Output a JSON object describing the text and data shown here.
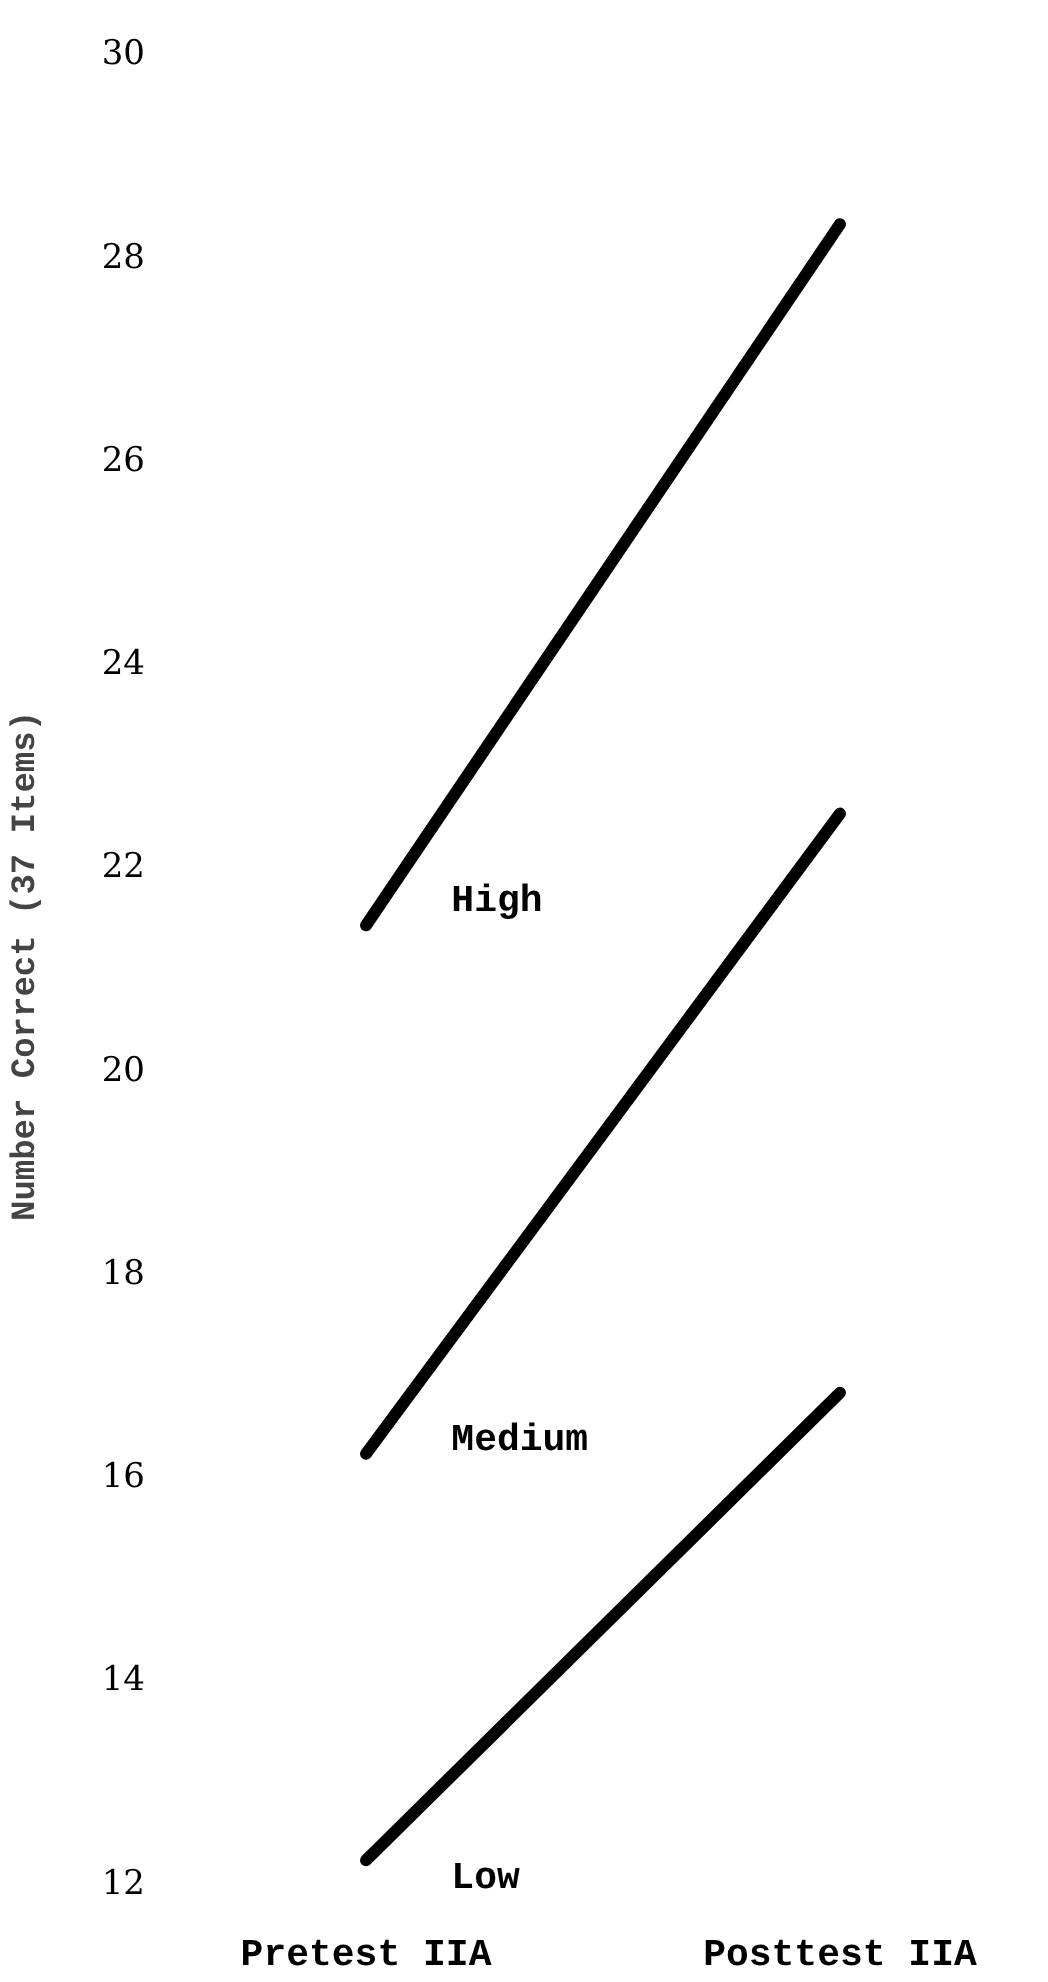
{
  "chart_data": {
    "type": "line",
    "ylabel": "Number Correct (37 Items)",
    "categories": [
      "Pretest IIA",
      "Posttest IIA"
    ],
    "series": [
      {
        "name": "High",
        "color": "#000000",
        "values": [
          21.4,
          28.3
        ]
      },
      {
        "name": "Medium",
        "color": "#000000",
        "values": [
          16.2,
          22.5
        ]
      },
      {
        "name": "Low",
        "color": "#000000",
        "values": [
          12.2,
          16.8
        ]
      }
    ],
    "ylim": [
      12,
      30
    ],
    "yticks": [
      12,
      14,
      16,
      18,
      20,
      22,
      24,
      26,
      28,
      30
    ],
    "grid": false,
    "legend": false,
    "marker": "none",
    "line_style": "solid"
  }
}
